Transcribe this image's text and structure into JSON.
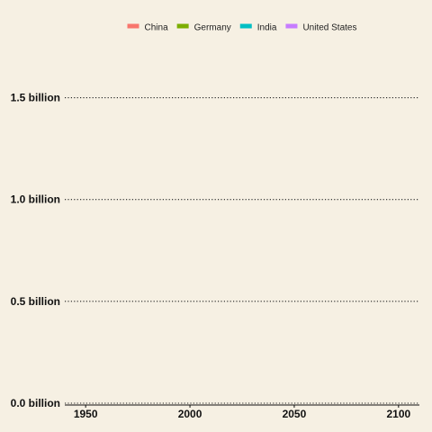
{
  "chart_data": {
    "type": "line",
    "title": "",
    "xlabel": "",
    "ylabel": "",
    "xlim": [
      1940,
      2110
    ],
    "ylim": [
      0,
      1.75
    ],
    "x_ticks": [
      1950,
      2000,
      2050,
      2100
    ],
    "x_tick_labels": [
      "1950",
      "2000",
      "2050",
      "2100"
    ],
    "y_ticks": [
      0,
      0.5,
      1.0,
      1.5
    ],
    "y_tick_labels": [
      "0.0 billion",
      "0.5 billion",
      "1.0 billion",
      "1.5 billion"
    ],
    "grid": "horizontal-dotted",
    "legend_position": "top",
    "series": [
      {
        "name": "China",
        "color": "#f8766d",
        "x": [],
        "y": []
      },
      {
        "name": "Germany",
        "color": "#7cae00",
        "x": [],
        "y": []
      },
      {
        "name": "India",
        "color": "#00bfc4",
        "x": [],
        "y": []
      },
      {
        "name": "United States",
        "color": "#c77cff",
        "x": [],
        "y": []
      }
    ]
  }
}
